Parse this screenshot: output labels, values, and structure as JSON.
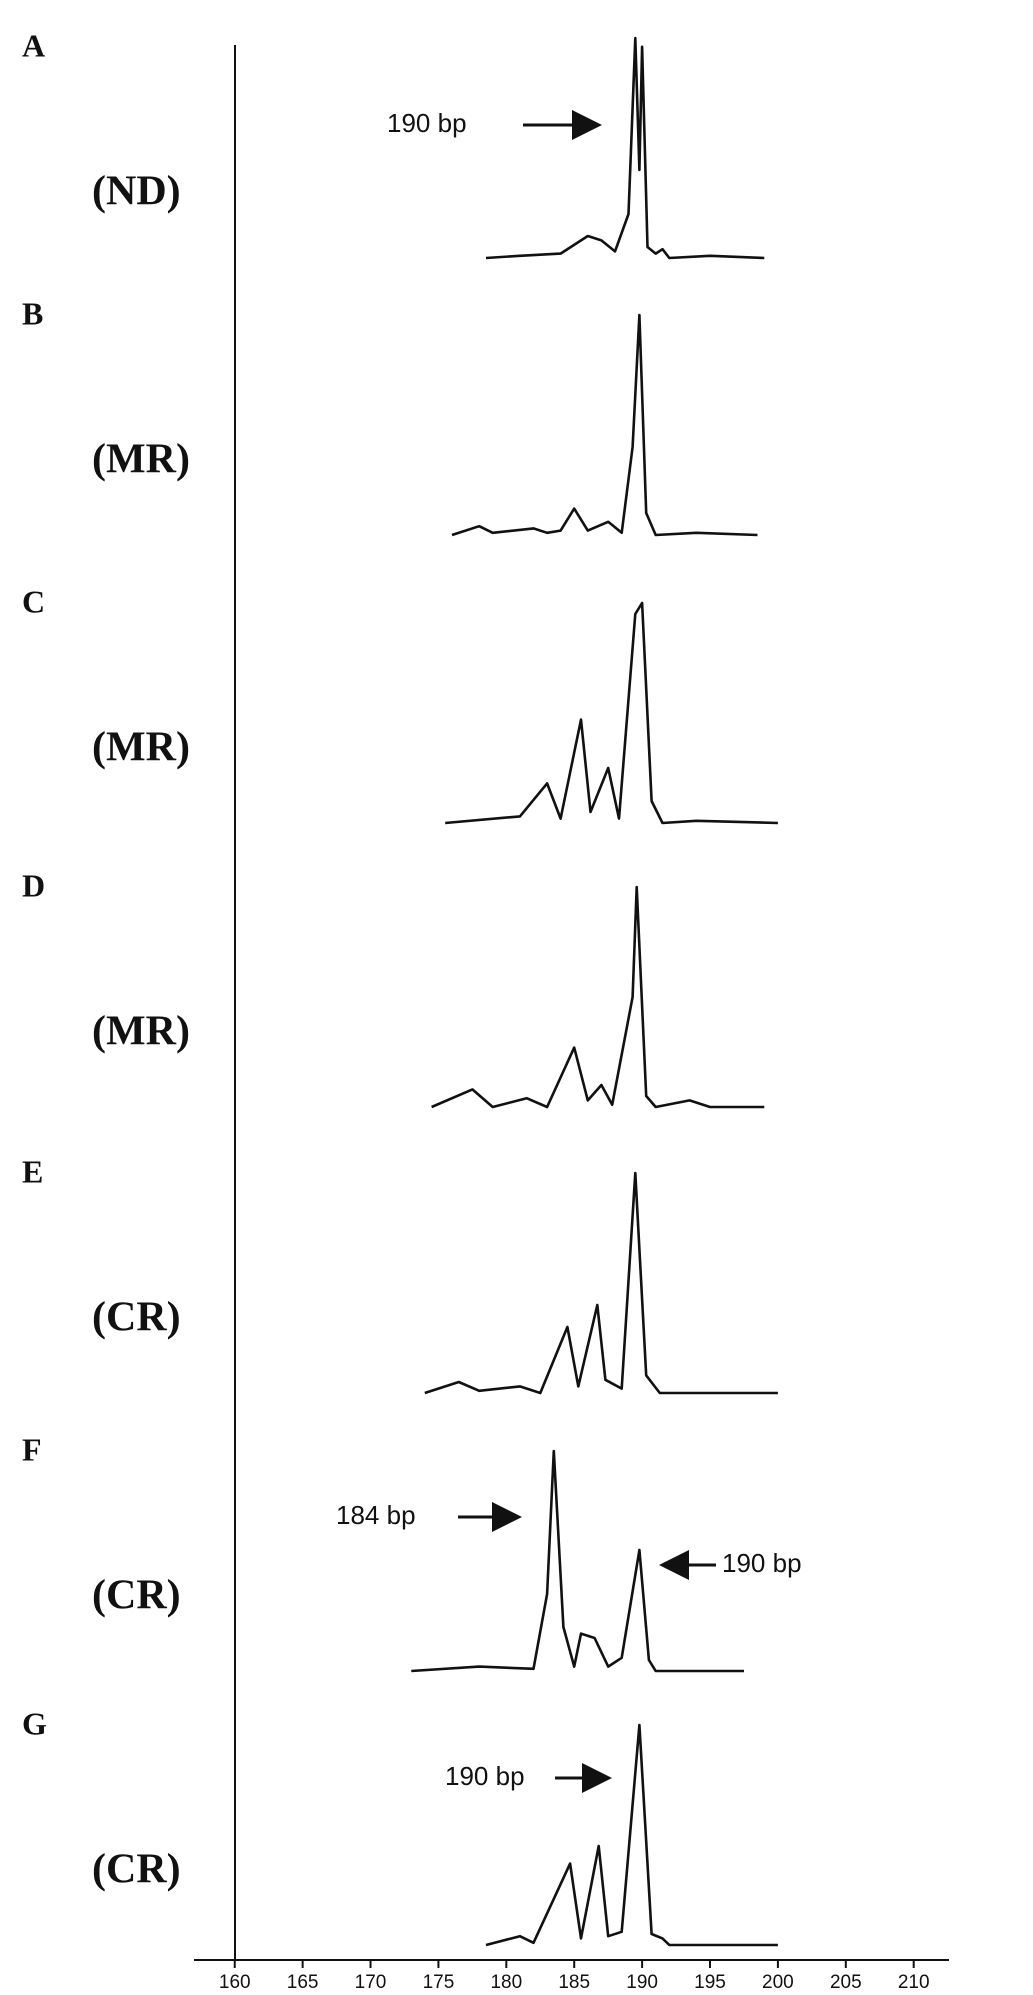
{
  "chart_data": {
    "type": "line",
    "color": "#111111",
    "xlim": [
      157,
      212.6
    ],
    "xticks": [
      160,
      165,
      170,
      175,
      180,
      185,
      190,
      195,
      200,
      205,
      210
    ],
    "panels": [
      {
        "label": "A",
        "group": "(ND)",
        "annotations": [
          "190 bp"
        ],
        "x": [
          178.5,
          181,
          184,
          186,
          187,
          188,
          189,
          189.5,
          189.8,
          190,
          190.4,
          191,
          191.5,
          192,
          195,
          199
        ],
        "values": [
          0,
          1,
          2,
          10,
          8,
          3,
          20,
          100,
          40,
          96,
          5,
          2,
          4,
          0,
          1,
          0
        ]
      },
      {
        "label": "B",
        "group": "(MR)",
        "annotations": [],
        "x": [
          176,
          178,
          179,
          182,
          183,
          184,
          185,
          186,
          187.5,
          188.5,
          189.3,
          189.8,
          190.3,
          191,
          194,
          198.5
        ],
        "values": [
          0,
          4,
          1,
          3,
          1,
          2,
          12,
          2,
          6,
          1,
          40,
          100,
          10,
          0,
          1,
          0
        ]
      },
      {
        "label": "C",
        "group": "(MR)",
        "annotations": [],
        "x": [
          175.5,
          181,
          183,
          184,
          185.5,
          186.2,
          187.5,
          188.3,
          189.5,
          190,
          190.7,
          191.5,
          194,
          200
        ],
        "values": [
          0,
          3,
          18,
          2,
          47,
          5,
          25,
          2,
          95,
          100,
          10,
          0,
          1,
          0
        ]
      },
      {
        "label": "D",
        "group": "(MR)",
        "annotations": [],
        "x": [
          174.5,
          177.5,
          179,
          181.5,
          183,
          185,
          186,
          187,
          187.8,
          189.3,
          189.6,
          190.3,
          191,
          193.5,
          195,
          199
        ],
        "values": [
          0,
          8,
          0,
          4,
          0,
          27,
          3,
          10,
          1,
          50,
          100,
          5,
          0,
          3,
          0,
          0
        ]
      },
      {
        "label": "E",
        "group": "(CR)",
        "annotations": [],
        "x": [
          174,
          176.5,
          178,
          181,
          182.5,
          184.5,
          185.3,
          186.7,
          187.3,
          188.5,
          189.5,
          190.3,
          191.3,
          200
        ],
        "values": [
          0,
          5,
          1,
          3,
          0,
          30,
          3,
          40,
          6,
          2,
          100,
          8,
          0,
          0
        ]
      },
      {
        "label": "F",
        "group": "(CR)",
        "annotations": [
          "184 bp",
          "190 bp"
        ],
        "x": [
          173,
          178,
          182,
          183,
          183.5,
          184.2,
          185,
          185.5,
          186.5,
          187.5,
          188.5,
          189.8,
          190.5,
          191,
          197.5
        ],
        "values": [
          0,
          2,
          1,
          35,
          100,
          20,
          2,
          17,
          15,
          2,
          6,
          55,
          5,
          0,
          0
        ]
      },
      {
        "label": "G",
        "group": "(CR)",
        "annotations": [
          "190 bp"
        ],
        "x": [
          178.5,
          181,
          182,
          184.7,
          185.5,
          186.8,
          187.5,
          188.5,
          189.8,
          190.7,
          191.5,
          192,
          200
        ],
        "values": [
          0,
          4,
          1,
          37,
          3,
          45,
          4,
          6,
          100,
          5,
          3,
          0,
          0
        ]
      }
    ]
  }
}
